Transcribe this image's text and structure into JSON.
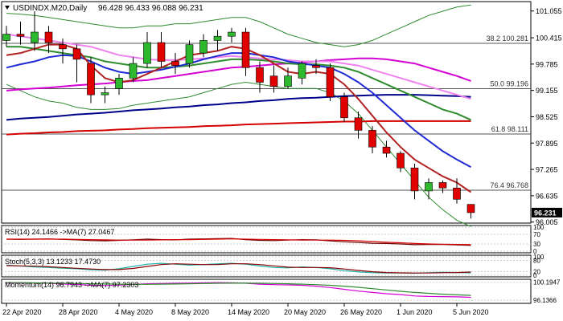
{
  "header": {
    "symbol_label": "USDINDX.M20,Daily",
    "ohlc_label": "96.428 96.433 96.088 96.231"
  },
  "chart_data": [
    {
      "type": "candlestick",
      "panel": "price",
      "title": "USDINDX.M20,Daily",
      "price_ticks": [
        "101.055",
        "100.415",
        "99.785",
        "99.155",
        "98.525",
        "97.895",
        "97.265",
        "96.635",
        "96.005"
      ],
      "ylim": [
        95.98,
        101.28
      ],
      "x_tick_labels": [
        "22 Apr 2020",
        "28 Apr 2020",
        "4 May 2020",
        "8 May 2020",
        "14 May 2020",
        "20 May 2020",
        "26 May 2020",
        "1 Jun 2020",
        "5 Jun 2020"
      ],
      "x_tick_index": [
        0,
        4,
        8,
        12,
        16,
        20,
        24,
        28,
        32
      ],
      "current_price_label": "96.231",
      "fib_levels": [
        {
          "label": "38.2 100.281",
          "value": 100.281
        },
        {
          "label": "50.0 99.196",
          "value": 99.196
        },
        {
          "label": "61.8 98.111",
          "value": 98.111
        },
        {
          "label": "76.4 96.768",
          "value": 96.768
        }
      ],
      "candles": [
        {
          "o": 100.35,
          "h": 100.7,
          "l": 100.2,
          "c": 100.5
        },
        {
          "o": 100.5,
          "h": 100.8,
          "l": 100.25,
          "c": 100.45
        },
        {
          "o": 100.3,
          "h": 101.05,
          "l": 100.1,
          "c": 100.55
        },
        {
          "o": 100.55,
          "h": 100.7,
          "l": 100.05,
          "c": 100.3
        },
        {
          "o": 100.25,
          "h": 100.4,
          "l": 99.8,
          "c": 100.15
        },
        {
          "o": 100.15,
          "h": 100.25,
          "l": 99.35,
          "c": 99.9
        },
        {
          "o": 99.8,
          "h": 99.95,
          "l": 98.85,
          "c": 99.05
        },
        {
          "o": 99.05,
          "h": 99.25,
          "l": 98.85,
          "c": 99.1
        },
        {
          "o": 99.2,
          "h": 99.55,
          "l": 99.05,
          "c": 99.45
        },
        {
          "o": 99.45,
          "h": 99.95,
          "l": 99.35,
          "c": 99.8
        },
        {
          "o": 99.8,
          "h": 100.55,
          "l": 99.7,
          "c": 100.3
        },
        {
          "o": 100.3,
          "h": 100.55,
          "l": 99.7,
          "c": 99.85
        },
        {
          "o": 99.85,
          "h": 100.05,
          "l": 99.55,
          "c": 99.75
        },
        {
          "o": 99.8,
          "h": 100.35,
          "l": 99.7,
          "c": 100.25
        },
        {
          "o": 100.05,
          "h": 100.5,
          "l": 99.95,
          "c": 100.35
        },
        {
          "o": 100.35,
          "h": 100.6,
          "l": 100.1,
          "c": 100.45
        },
        {
          "o": 100.45,
          "h": 100.65,
          "l": 100.3,
          "c": 100.55
        },
        {
          "o": 100.55,
          "h": 100.65,
          "l": 99.5,
          "c": 99.7
        },
        {
          "o": 99.7,
          "h": 99.85,
          "l": 99.1,
          "c": 99.35
        },
        {
          "o": 99.5,
          "h": 99.75,
          "l": 99.1,
          "c": 99.25
        },
        {
          "o": 99.25,
          "h": 99.7,
          "l": 99.2,
          "c": 99.5
        },
        {
          "o": 99.45,
          "h": 99.85,
          "l": 99.3,
          "c": 99.8
        },
        {
          "o": 99.75,
          "h": 99.9,
          "l": 99.55,
          "c": 99.7
        },
        {
          "o": 99.7,
          "h": 99.8,
          "l": 98.9,
          "c": 99.0
        },
        {
          "o": 99.0,
          "h": 99.1,
          "l": 98.4,
          "c": 98.5
        },
        {
          "o": 98.5,
          "h": 98.65,
          "l": 98.0,
          "c": 98.2
        },
        {
          "o": 98.2,
          "h": 98.3,
          "l": 97.65,
          "c": 97.8
        },
        {
          "o": 97.8,
          "h": 97.95,
          "l": 97.55,
          "c": 97.65
        },
        {
          "o": 97.65,
          "h": 97.7,
          "l": 97.2,
          "c": 97.3
        },
        {
          "o": 97.3,
          "h": 97.4,
          "l": 96.55,
          "c": 96.75
        },
        {
          "o": 96.75,
          "h": 97.05,
          "l": 96.55,
          "c": 96.95
        },
        {
          "o": 96.95,
          "h": 97.0,
          "l": 96.7,
          "c": 96.82
        },
        {
          "o": 96.82,
          "h": 97.05,
          "l": 96.45,
          "c": 96.55
        },
        {
          "o": 96.428,
          "h": 96.433,
          "l": 96.088,
          "c": 96.231
        }
      ],
      "moving_averages": [
        {
          "color": "#b22222",
          "values": [
            100.0,
            100.05,
            100.15,
            100.25,
            100.25,
            100.15,
            99.75,
            99.45,
            99.35,
            99.4,
            99.55,
            99.7,
            99.85,
            100.0,
            100.05,
            100.1,
            100.2,
            100.15,
            100.0,
            99.8,
            99.6,
            99.55,
            99.6,
            99.55,
            99.3,
            98.95,
            98.55,
            98.15,
            97.8,
            97.5,
            97.3,
            97.1,
            96.95,
            96.72
          ]
        },
        {
          "color": "#1f2ad4",
          "values": [
            99.7,
            99.78,
            99.85,
            99.95,
            100.0,
            99.98,
            99.85,
            99.7,
            99.6,
            99.55,
            99.6,
            99.65,
            99.72,
            99.8,
            99.9,
            99.98,
            100.05,
            100.05,
            100.0,
            99.95,
            99.85,
            99.8,
            99.75,
            99.7,
            99.55,
            99.35,
            99.1,
            98.8,
            98.5,
            98.2,
            97.95,
            97.7,
            97.5,
            97.32
          ]
        },
        {
          "color": "#2e8b2e",
          "values": [
            100.2,
            100.2,
            100.15,
            100.1,
            100.05,
            100.0,
            99.95,
            99.85,
            99.8,
            99.75,
            99.7,
            99.7,
            99.72,
            99.75,
            99.8,
            99.85,
            99.9,
            99.9,
            99.88,
            99.85,
            99.8,
            99.78,
            99.78,
            99.75,
            99.7,
            99.6,
            99.45,
            99.3,
            99.15,
            99.0,
            98.85,
            98.7,
            98.6,
            98.45
          ]
        },
        {
          "color": "#ee82ee",
          "values": [
            100.5,
            100.45,
            100.4,
            100.35,
            100.3,
            100.25,
            100.2,
            100.1,
            100.0,
            99.95,
            99.9,
            99.88,
            99.88,
            99.9,
            99.92,
            99.95,
            99.98,
            99.95,
            99.92,
            99.9,
            99.88,
            99.85,
            99.85,
            99.85,
            99.8,
            99.75,
            99.65,
            99.55,
            99.45,
            99.35,
            99.25,
            99.15,
            99.05,
            98.95
          ]
        },
        {
          "color": "#d400d4",
          "values": [
            99.15,
            99.18,
            99.2,
            99.22,
            99.25,
            99.28,
            99.3,
            99.32,
            99.35,
            99.38,
            99.4,
            99.45,
            99.5,
            99.55,
            99.6,
            99.65,
            99.7,
            99.72,
            99.75,
            99.78,
            99.8,
            99.82,
            99.85,
            99.88,
            99.9,
            99.92,
            99.92,
            99.9,
            99.85,
            99.8,
            99.7,
            99.6,
            99.5,
            99.38
          ]
        },
        {
          "color": "#00008b",
          "values": [
            98.45,
            98.48,
            98.5,
            98.52,
            98.55,
            98.58,
            98.6,
            98.62,
            98.65,
            98.68,
            98.7,
            98.72,
            98.75,
            98.77,
            98.8,
            98.82,
            98.85,
            98.87,
            98.9,
            98.92,
            98.95,
            98.97,
            98.98,
            99.0,
            99.02,
            99.03,
            99.04,
            99.05,
            99.05,
            99.05,
            99.04,
            99.03,
            99.02,
            99.0
          ]
        },
        {
          "color": "#d40000",
          "values": [
            98.1,
            98.12,
            98.13,
            98.15,
            98.16,
            98.18,
            98.19,
            98.2,
            98.22,
            98.23,
            98.25,
            98.26,
            98.27,
            98.28,
            98.3,
            98.31,
            98.32,
            98.34,
            98.35,
            98.36,
            98.37,
            98.38,
            98.39,
            98.4,
            98.41,
            98.41,
            98.42,
            98.42,
            98.42,
            98.42,
            98.42,
            98.42,
            98.42,
            98.42
          ]
        }
      ],
      "bollinger_upper": [
        101.0,
        100.98,
        100.95,
        100.9,
        100.85,
        100.8,
        100.75,
        100.7,
        100.65,
        100.65,
        100.7,
        100.7,
        100.75,
        100.75,
        100.8,
        100.85,
        100.9,
        100.9,
        100.8,
        100.65,
        100.5,
        100.4,
        100.3,
        100.25,
        100.2,
        100.25,
        100.35,
        100.5,
        100.65,
        100.8,
        100.95,
        101.05,
        101.15,
        101.2
      ],
      "bollinger_lower": [
        99.3,
        99.15,
        99.0,
        98.9,
        98.85,
        98.75,
        98.7,
        98.7,
        98.72,
        98.8,
        98.85,
        98.9,
        98.95,
        99.0,
        99.1,
        99.2,
        99.3,
        99.35,
        99.3,
        99.25,
        99.2,
        99.2,
        99.2,
        99.1,
        98.9,
        98.6,
        98.2,
        97.8,
        97.4,
        97.0,
        96.6,
        96.3,
        96.05,
        95.9
      ]
    },
    {
      "type": "line",
      "panel": "rsi",
      "label": "RSI(14) 24.1466 ->MA(7) 27.0467",
      "ticks": [
        "100",
        "70",
        "30",
        "0"
      ],
      "tick_values": [
        100,
        70,
        30,
        0
      ],
      "ylim": [
        0,
        100
      ],
      "series": [
        {
          "color": "#6b0000",
          "values": [
            50,
            49,
            50,
            51,
            49,
            47,
            44,
            43,
            45,
            47,
            50,
            48,
            47,
            50,
            51,
            52,
            53,
            48,
            45,
            44,
            46,
            48,
            47,
            43,
            39,
            36,
            33,
            32,
            30,
            27,
            28,
            28,
            26,
            24.1466
          ]
        },
        {
          "color": "#d40000",
          "values": [
            50,
            50,
            50,
            50,
            50,
            49,
            48,
            47,
            46,
            46,
            46,
            47,
            48,
            48,
            49,
            50,
            51,
            50,
            49,
            48,
            47,
            46,
            46,
            46,
            45,
            43,
            40,
            37,
            35,
            32,
            30,
            29,
            28,
            27.0467
          ]
        }
      ]
    },
    {
      "type": "line",
      "panel": "stochastic",
      "label": "Stoch(5,3,3) 13.1233 17.4730",
      "ticks": [
        "100",
        "80",
        "20",
        "0"
      ],
      "tick_values": [
        100,
        80,
        20,
        0
      ],
      "ylim": [
        0,
        100
      ],
      "series": [
        {
          "color": "#20b2aa",
          "values": [
            55,
            50,
            45,
            42,
            38,
            35,
            30,
            28,
            35,
            48,
            60,
            65,
            60,
            55,
            58,
            62,
            65,
            60,
            50,
            42,
            40,
            45,
            42,
            35,
            25,
            18,
            14,
            12,
            12,
            11,
            14,
            16,
            15,
            13.1233
          ]
        },
        {
          "color": "#8b0000",
          "values": [
            52,
            51,
            49,
            46,
            42,
            38,
            34,
            31,
            31,
            37,
            48,
            58,
            62,
            60,
            58,
            58,
            62,
            62,
            58,
            51,
            44,
            42,
            42,
            41,
            34,
            26,
            19,
            15,
            13,
            12,
            12,
            14,
            15,
            17.473
          ]
        }
      ]
    },
    {
      "type": "line",
      "panel": "momentum",
      "label": "Momentum(14) 96.7943 ->MA(7) 97.2303",
      "ticks": [
        "100.1947",
        "96.1366"
      ],
      "tick_values": [
        100.1947,
        96.1366
      ],
      "ylim": [
        95.8,
        100.5
      ],
      "series": [
        {
          "color": "#d400d4",
          "values": [
            100.0,
            100.05,
            100.0,
            99.95,
            99.8,
            99.7,
            99.5,
            99.45,
            99.55,
            99.7,
            99.85,
            99.9,
            99.95,
            100.0,
            100.05,
            100.1,
            100.05,
            99.95,
            99.75,
            99.65,
            99.6,
            99.5,
            99.3,
            99.0,
            98.6,
            98.2,
            97.9,
            97.6,
            97.4,
            97.1,
            97.0,
            96.95,
            96.9,
            96.7943
          ]
        },
        {
          "color": "#2e8b2e",
          "values": [
            100.1,
            100.1,
            100.05,
            100.0,
            99.95,
            99.9,
            99.85,
            99.8,
            99.75,
            99.72,
            99.72,
            99.75,
            99.8,
            99.85,
            99.9,
            99.95,
            99.98,
            99.98,
            99.95,
            99.9,
            99.85,
            99.75,
            99.65,
            99.5,
            99.3,
            99.05,
            98.75,
            98.45,
            98.15,
            97.9,
            97.7,
            97.5,
            97.35,
            97.2303
          ]
        }
      ]
    }
  ],
  "colors": {
    "bull": "#2eb82e",
    "bear": "#e00000",
    "bollinger": "#2e8b2e",
    "grid": "#cccccc",
    "axis_text": "#000000"
  }
}
